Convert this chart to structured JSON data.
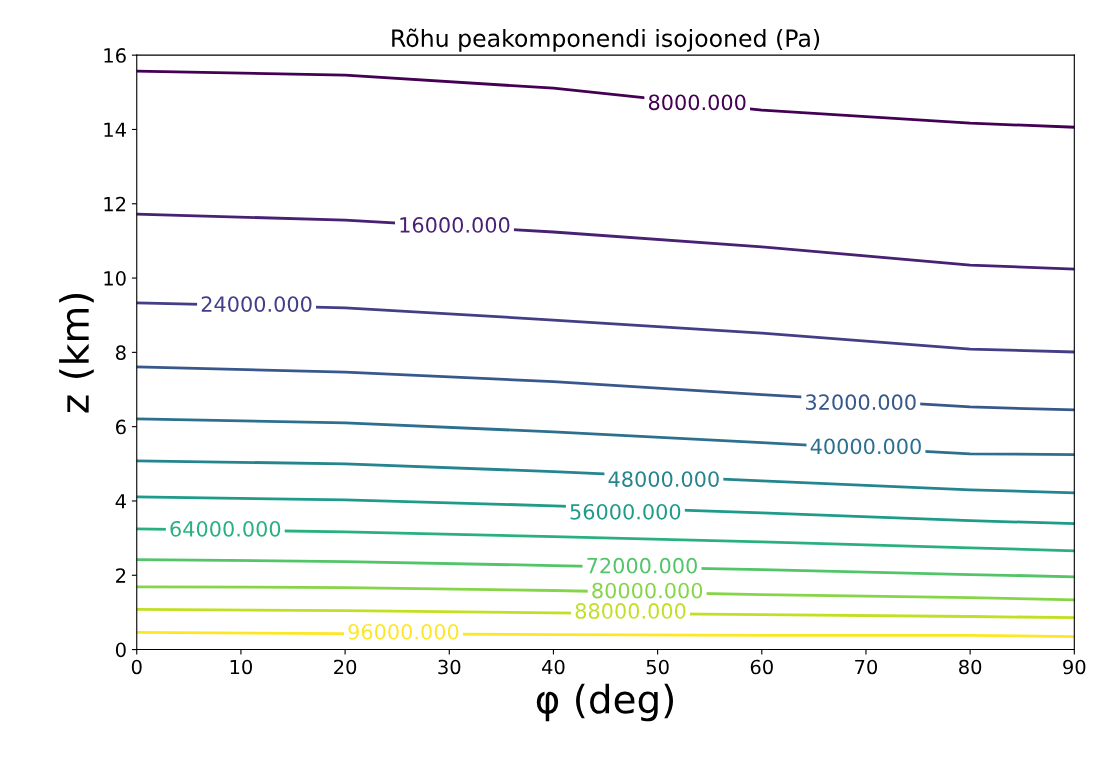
{
  "chart_data": {
    "type": "line",
    "title": "Rõhu peakomponendi isojooned (Pa)",
    "xlabel": "φ (deg)",
    "ylabel": "z (km)",
    "x": [
      0,
      20,
      40,
      60,
      80,
      90
    ],
    "xlim": [
      0,
      90
    ],
    "xticks": [
      0,
      10,
      20,
      30,
      40,
      50,
      60,
      70,
      80,
      90
    ],
    "ylim": [
      0,
      16
    ],
    "yticks": [
      0,
      2,
      4,
      6,
      8,
      10,
      12,
      14,
      16
    ],
    "grid": false,
    "legend": false,
    "marker": "none",
    "line_style": "solid",
    "series": [
      {
        "color": "#440154",
        "values": [
          15.57,
          15.46,
          15.11,
          14.52,
          14.17,
          14.06
        ]
      },
      {
        "color": "#482173",
        "values": [
          11.72,
          11.56,
          11.24,
          10.84,
          10.35,
          10.24
        ]
      },
      {
        "color": "#433e85",
        "values": [
          9.33,
          9.2,
          8.87,
          8.52,
          8.09,
          8.01
        ]
      },
      {
        "color": "#38588c",
        "values": [
          7.61,
          7.47,
          7.21,
          6.86,
          6.53,
          6.45
        ]
      },
      {
        "color": "#2d708e",
        "values": [
          6.21,
          6.1,
          5.86,
          5.57,
          5.27,
          5.25
        ]
      },
      {
        "color": "#25858e",
        "values": [
          5.08,
          5.0,
          4.79,
          4.54,
          4.3,
          4.22
        ]
      },
      {
        "color": "#1e9b8a",
        "values": [
          4.11,
          4.03,
          3.87,
          3.68,
          3.47,
          3.39
        ]
      },
      {
        "color": "#2ab07f",
        "values": [
          3.25,
          3.17,
          3.04,
          2.9,
          2.74,
          2.66
        ]
      },
      {
        "color": "#52c569",
        "values": [
          2.42,
          2.37,
          2.26,
          2.15,
          2.02,
          1.96
        ]
      },
      {
        "color": "#86d549",
        "values": [
          1.69,
          1.67,
          1.59,
          1.48,
          1.4,
          1.34
        ]
      },
      {
        "color": "#c2df23",
        "values": [
          1.08,
          1.05,
          0.99,
          0.94,
          0.89,
          0.86
        ]
      },
      {
        "color": "#fde725",
        "values": [
          0.46,
          0.43,
          0.4,
          0.38,
          0.38,
          0.35
        ]
      }
    ],
    "annotations": [
      {
        "text": "8000.000",
        "x": 53.8,
        "y": 14.68
      },
      {
        "text": "16000.000",
        "x": 30.5,
        "y": 11.38
      },
      {
        "text": "24000.000",
        "x": 11.5,
        "y": 9.25
      },
      {
        "text": "32000.000",
        "x": 69.5,
        "y": 6.61
      },
      {
        "text": "40000.000",
        "x": 70,
        "y": 5.42
      },
      {
        "text": "48000.000",
        "x": 50.6,
        "y": 4.54
      },
      {
        "text": "56000.000",
        "x": 46.9,
        "y": 3.66
      },
      {
        "text": "64000.000",
        "x": 8.5,
        "y": 3.2
      },
      {
        "text": "72000.000",
        "x": 48.5,
        "y": 2.21
      },
      {
        "text": "80000.000",
        "x": 49,
        "y": 1.54
      },
      {
        "text": "88000.000",
        "x": 47.4,
        "y": 0.99
      },
      {
        "text": "96000.000",
        "x": 25.6,
        "y": 0.43
      }
    ]
  }
}
